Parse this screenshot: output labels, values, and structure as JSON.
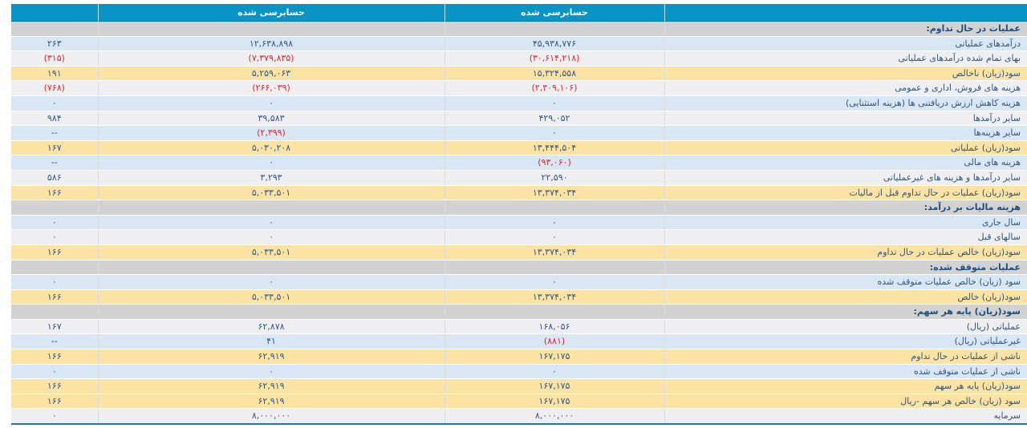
{
  "colors": {
    "header_bg": "#0894c4",
    "header_text": "#ffffff",
    "section_bg": "#d2d2d2",
    "row_blue": "#d9e6f3",
    "row_plain": "#efeff1",
    "row_yellow": "#fbe3a4",
    "text_num": "#31568c",
    "text_label": "#31567c",
    "section_text": "#1d4e7e",
    "negative": "#e8232b",
    "border_bottom": "#1c75bb"
  },
  "table": {
    "header": {
      "audited_current": "حسابرسی شده",
      "audited_prior": "حسابرسی شده"
    },
    "rows": [
      {
        "type": "section",
        "label": "عملیات در حال تداوم:"
      },
      {
        "type": "data",
        "bg": "blue",
        "label": "درآمدهای عملیاتی",
        "current": "۴۵,۹۳۸,۷۷۶",
        "prior": "۱۲,۶۳۸,۸۹۸",
        "pct": "۲۶۳"
      },
      {
        "type": "data",
        "bg": "plain",
        "label": "بهای تمام شده درآمدهای عملیاتی",
        "current": "(۳۰,۶۱۴,۲۱۸)",
        "prior": "(۷,۳۷۹,۸۳۵)",
        "pct": "(۳۱۵)"
      },
      {
        "type": "data",
        "bg": "yellow",
        "label": "سود(زیان) ناخالص",
        "current": "۱۵,۳۲۴,۵۵۸",
        "prior": "۵,۲۵۹,۰۶۳",
        "pct": "۱۹۱"
      },
      {
        "type": "data",
        "bg": "plain",
        "label": "هزینه های فروش، اداری و عمومی",
        "current": "(۲,۳۰۹,۱۰۶)",
        "prior": "(۲۶۶,۰۳۹)",
        "pct": "(۷۶۸)"
      },
      {
        "type": "data",
        "bg": "blue",
        "label": "هزینه کاهش ارزش دریافتنی ها (هزینه استثنایی)",
        "current": "۰",
        "prior": "۰",
        "pct": "۰"
      },
      {
        "type": "data",
        "bg": "plain",
        "label": "سایر درآمدها",
        "current": "۴۲۹,۰۵۲",
        "prior": "۳۹,۵۸۳",
        "pct": "۹۸۴"
      },
      {
        "type": "data",
        "bg": "blue",
        "label": "سایر هزینه‌ها",
        "current": "۰",
        "prior": "(۲,۳۹۹)",
        "pct": "--"
      },
      {
        "type": "data",
        "bg": "yellow",
        "label": "سود(زیان) عملیاتی",
        "current": "۱۳,۴۴۴,۵۰۴",
        "prior": "۵,۰۳۰,۲۰۸",
        "pct": "۱۶۷"
      },
      {
        "type": "data",
        "bg": "blue",
        "label": "هزینه های مالی",
        "current": "(۹۳,۰۶۰)",
        "prior": "۰",
        "pct": "--"
      },
      {
        "type": "data",
        "bg": "plain",
        "label": "سایر درآمدها و هزینه های غیرعملیاتی",
        "current": "۲۲,۵۹۰",
        "prior": "۳,۲۹۳",
        "pct": "۵۸۶"
      },
      {
        "type": "data",
        "bg": "yellow",
        "label": "سود(زیان) عملیات در حال تداوم قبل از مالیات",
        "current": "۱۳,۳۷۴,۰۳۴",
        "prior": "۵,۰۳۳,۵۰۱",
        "pct": "۱۶۶"
      },
      {
        "type": "section",
        "label": "هزینه مالیات بر درآمد:"
      },
      {
        "type": "data",
        "bg": "blue",
        "label": "سال جاری",
        "current": "۰",
        "prior": "۰",
        "pct": "۰"
      },
      {
        "type": "data",
        "bg": "plain",
        "label": "سالهای قبل",
        "current": "۰",
        "prior": "۰",
        "pct": "۰"
      },
      {
        "type": "data",
        "bg": "yellow",
        "label": "سود(زیان) خالص عملیات در حال تداوم",
        "current": "۱۳,۳۷۴,۰۳۴",
        "prior": "۵,۰۳۳,۵۰۱",
        "pct": "۱۶۶"
      },
      {
        "type": "section",
        "label": "عملیات متوقف شده:"
      },
      {
        "type": "data",
        "bg": "blue",
        "label": "سود (زیان) خالص عملیات متوقف شده",
        "current": "۰",
        "prior": "۰",
        "pct": "۰"
      },
      {
        "type": "data",
        "bg": "yellow",
        "label": "سود(زیان) خالص",
        "current": "۱۳,۳۷۴,۰۳۴",
        "prior": "۵,۰۳۳,۵۰۱",
        "pct": "۱۶۶"
      },
      {
        "type": "section",
        "label": "سود(زیان) پایه هر سهم:"
      },
      {
        "type": "data",
        "bg": "plain",
        "label": "عملیاتی (ریال)",
        "current": "۱۶۸,۰۵۶",
        "prior": "۶۲,۸۷۸",
        "pct": "۱۶۷"
      },
      {
        "type": "data",
        "bg": "blue",
        "label": "غیرعملیاتی (ریال)",
        "current": "(۸۸۱)",
        "prior": "۴۱",
        "pct": "--"
      },
      {
        "type": "data",
        "bg": "yellow",
        "label": "ناشی از عملیات در حال تداوم",
        "current": "۱۶۷,۱۷۵",
        "prior": "۶۲,۹۱۹",
        "pct": "۱۶۶"
      },
      {
        "type": "data",
        "bg": "blue",
        "label": "ناشی از عملیات متوقف شده",
        "current": "۰",
        "prior": "۰",
        "pct": "۰"
      },
      {
        "type": "data",
        "bg": "yellow",
        "label": "سود(زیان) پایه هر سهم",
        "current": "۱۶۷,۱۷۵",
        "prior": "۶۲,۹۱۹",
        "pct": "۱۶۶"
      },
      {
        "type": "data",
        "bg": "yellow",
        "label": "سود (زیان) خالص هر سهم -ریال",
        "current": "۱۶۷,۱۷۵",
        "prior": "۶۲,۹۱۹",
        "pct": "۱۶۶"
      },
      {
        "type": "data",
        "bg": "plain",
        "label": "سرمایه",
        "current": "۸,۰۰۰,۰۰۰",
        "prior": "۸,۰۰۰,۰۰۰",
        "pct": "۰"
      }
    ]
  }
}
